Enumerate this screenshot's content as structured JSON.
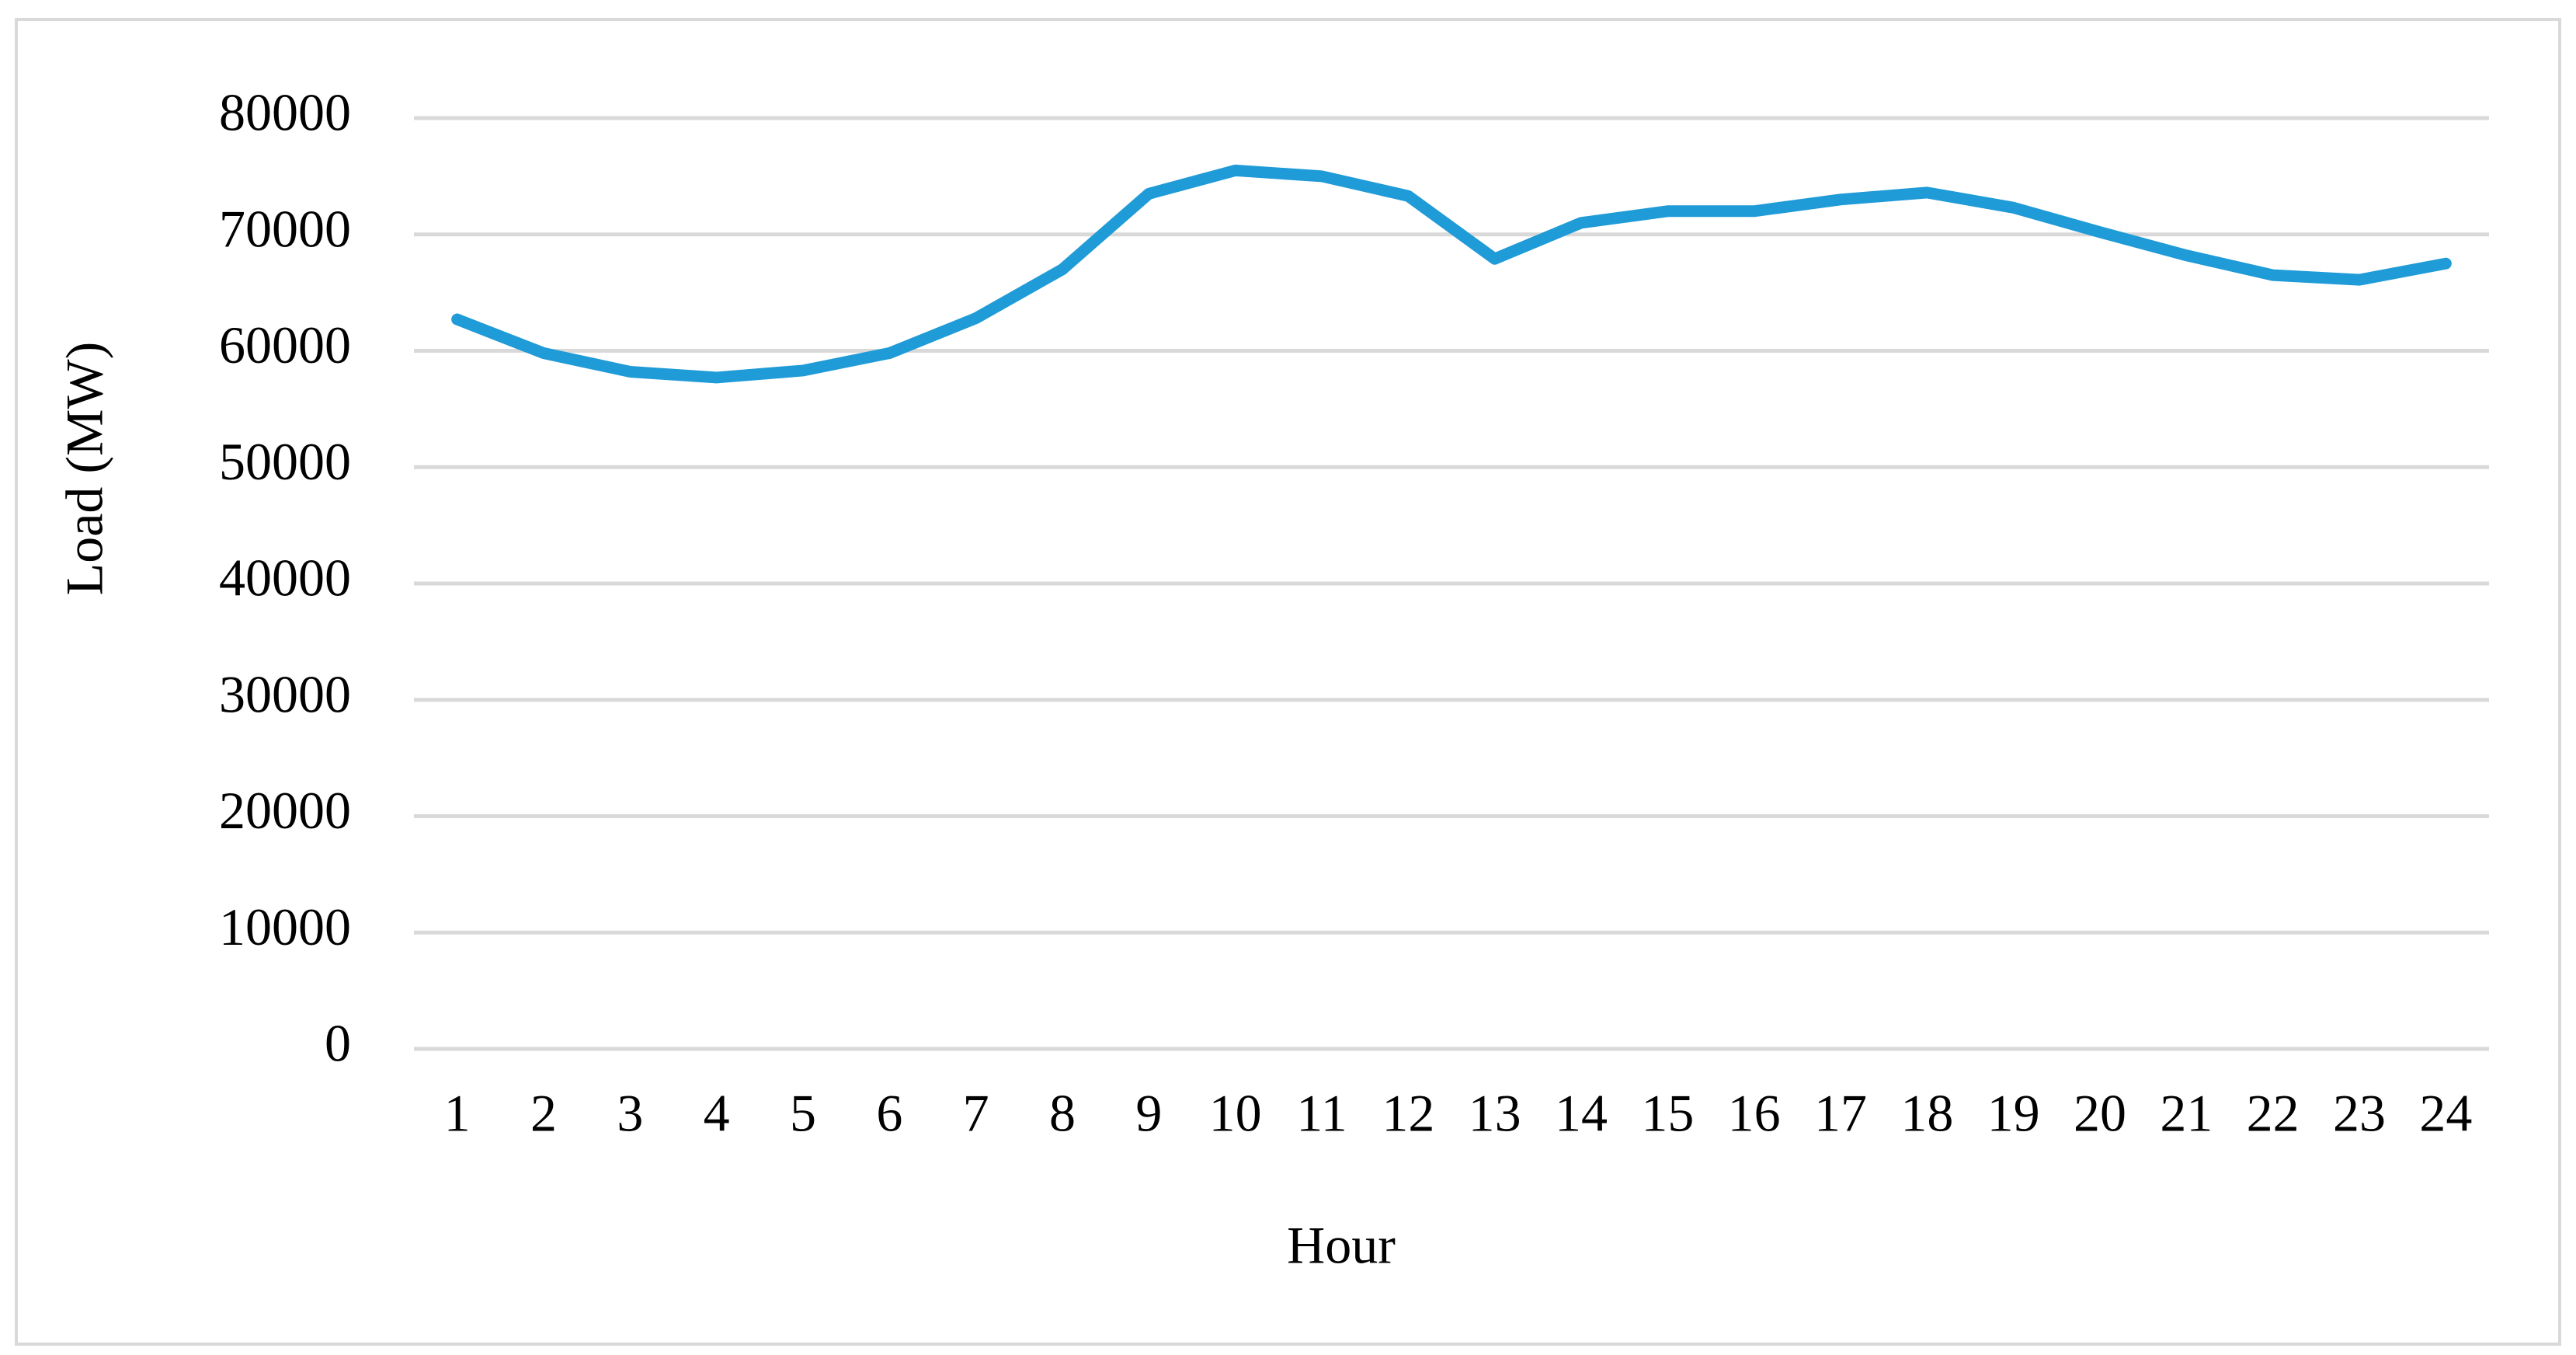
{
  "chart_data": {
    "type": "line",
    "x_label": "Hour",
    "y_label": "Load (MW)",
    "categories": [
      "1",
      "2",
      "3",
      "4",
      "5",
      "6",
      "7",
      "8",
      "9",
      "10",
      "11",
      "12",
      "13",
      "14",
      "15",
      "16",
      "17",
      "18",
      "19",
      "20",
      "21",
      "22",
      "23",
      "24"
    ],
    "series": [
      {
        "name": "Load",
        "color": "#1f9bd7",
        "values": [
          62700,
          59800,
          58200,
          57700,
          58300,
          59800,
          62800,
          67000,
          73500,
          75500,
          75000,
          73300,
          67900,
          71000,
          72000,
          72000,
          73000,
          73600,
          72300,
          70200,
          68200,
          66500,
          66100,
          67500
        ]
      }
    ],
    "ylim": [
      0,
      80000
    ],
    "yticks": [
      0,
      10000,
      20000,
      30000,
      40000,
      50000,
      60000,
      70000,
      80000
    ],
    "grid": true,
    "legend": false
  }
}
